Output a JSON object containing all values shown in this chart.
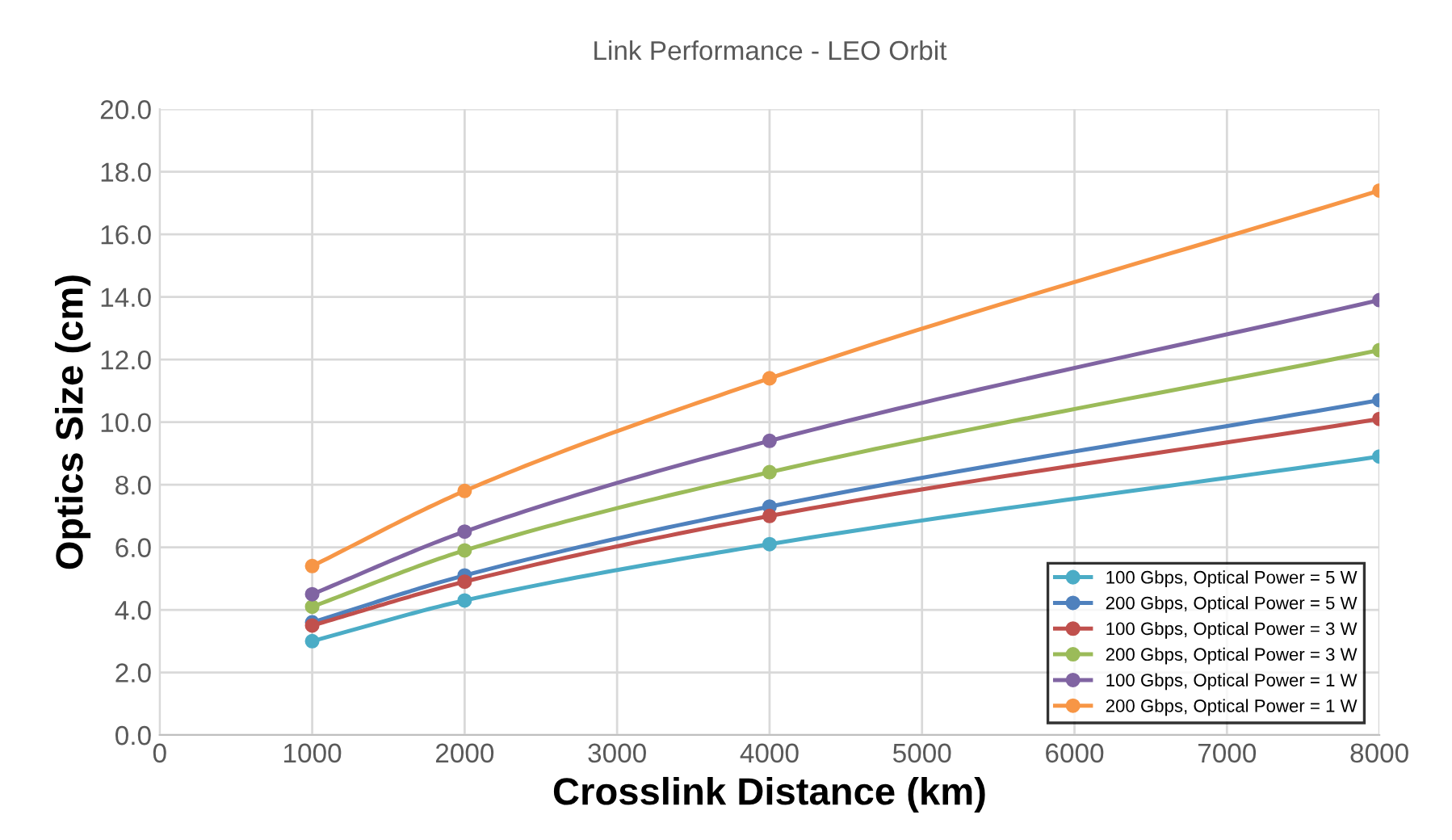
{
  "chart_data": {
    "type": "line",
    "title": "Link Performance - LEO Orbit",
    "xlabel": "Crosslink Distance (km)",
    "ylabel": "Optics Size (cm)",
    "x": [
      1000,
      2000,
      4000,
      8000
    ],
    "series": [
      {
        "name": "100 Gbps, Optical Power = 5 W",
        "color": "#4bacc6",
        "values": [
          3.0,
          4.3,
          6.1,
          8.9
        ]
      },
      {
        "name": "200 Gbps, Optical Power = 5 W",
        "color": "#4f81bd",
        "values": [
          3.6,
          5.1,
          7.3,
          10.7
        ]
      },
      {
        "name": "100 Gbps, Optical Power = 3 W",
        "color": "#c0504d",
        "values": [
          3.5,
          4.9,
          7.0,
          10.1
        ]
      },
      {
        "name": "200 Gbps, Optical Power = 3 W",
        "color": "#9bbb59",
        "values": [
          4.1,
          5.9,
          8.4,
          12.3
        ]
      },
      {
        "name": "100 Gbps, Optical Power = 1 W",
        "color": "#8064a2",
        "values": [
          4.5,
          6.5,
          9.4,
          13.9
        ]
      },
      {
        "name": "200 Gbps, Optical Power = 1 W",
        "color": "#f79646",
        "values": [
          5.4,
          7.8,
          11.4,
          17.4
        ]
      }
    ],
    "xlim": [
      0,
      8000
    ],
    "xticks": [
      0,
      1000,
      2000,
      3000,
      4000,
      5000,
      6000,
      7000,
      8000
    ],
    "ylim": [
      0,
      20
    ],
    "yticks": [
      {
        "value": 0,
        "label": "0.0"
      },
      {
        "value": 2,
        "label": "2.0"
      },
      {
        "value": 4,
        "label": "4.0"
      },
      {
        "value": 6,
        "label": "6.0"
      },
      {
        "value": 8,
        "label": "8.0"
      },
      {
        "value": 10,
        "label": "10.0"
      },
      {
        "value": 12,
        "label": "12.0"
      },
      {
        "value": 14,
        "label": "14.0"
      },
      {
        "value": 16,
        "label": "16.0"
      },
      {
        "value": 18,
        "label": "18.0"
      },
      {
        "value": 20,
        "label": "20.0"
      }
    ],
    "grid": true,
    "legend": "bottom right",
    "marker": "circle",
    "line_style": "solid"
  }
}
